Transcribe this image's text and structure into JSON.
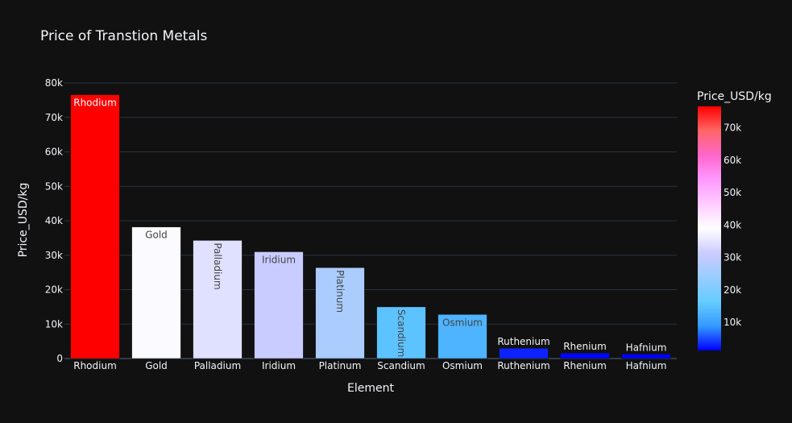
{
  "chart_data": {
    "type": "bar",
    "title": "Price of Transtion Metals",
    "xlabel": "Element",
    "ylabel": "Price_USD/kg",
    "ylim": [
      0,
      80000
    ],
    "yticks": [
      0,
      10000,
      20000,
      30000,
      40000,
      50000,
      60000,
      70000,
      80000
    ],
    "ytick_labels": [
      "0",
      "10k",
      "20k",
      "30k",
      "40k",
      "50k",
      "60k",
      "70k",
      "80k"
    ],
    "categories": [
      "Rhodium",
      "Gold",
      "Palladium",
      "Iridium",
      "Platinum",
      "Scandium",
      "Osmium",
      "Ruthenium",
      "Rhenium",
      "Hafnium"
    ],
    "values": [
      76600,
      38200,
      34300,
      31000,
      26400,
      15000,
      12800,
      3000,
      1600,
      1300
    ],
    "bar_text": [
      "Rhodium",
      "Gold",
      "Palladium",
      "Iridium",
      "Platinum",
      "Scandium",
      "Osmium",
      "Ruthenium",
      "Rhenium",
      "Hafnium"
    ],
    "grid": true,
    "colorbar": {
      "title": "Price_USD/kg",
      "range": [
        1300,
        76600
      ],
      "ticks": [
        10000,
        20000,
        30000,
        40000,
        50000,
        60000,
        70000
      ],
      "tick_labels": [
        "10k",
        "20k",
        "30k",
        "40k",
        "50k",
        "60k",
        "70k"
      ],
      "colorscale": [
        "#0000ff",
        "#3399ff",
        "#66ccff",
        "#99ccff",
        "#ccccff",
        "#ffffff",
        "#ffccff",
        "#ff99ff",
        "#ff66cc",
        "#ff6666",
        "#ff0000"
      ]
    },
    "background": "#111111",
    "text_color": "#f2f5fa"
  }
}
